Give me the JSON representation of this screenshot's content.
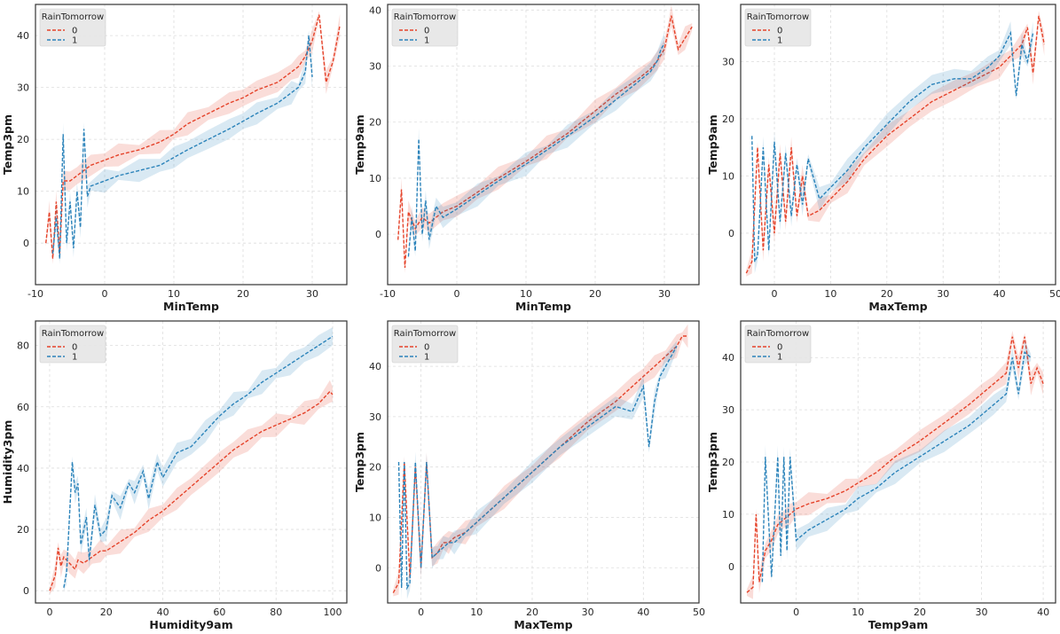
{
  "colors": {
    "series0": "#e5432a",
    "series1": "#2b83ba",
    "grid": "#dddddd",
    "frame": "#333333",
    "legend_bg": "#e6e6e6"
  },
  "chart_data": [
    {
      "type": "line",
      "title": "",
      "xlabel": "MinTemp",
      "ylabel": "Temp3pm",
      "xlim": [
        -10,
        35
      ],
      "ylim": [
        -8,
        46
      ],
      "xticks": [
        -10,
        0,
        10,
        20,
        30
      ],
      "yticks": [
        0,
        10,
        20,
        30,
        40
      ],
      "grid": true,
      "legend": {
        "title": "RainTomorrow",
        "entries": [
          "0",
          "1"
        ],
        "placement": "top-left"
      },
      "series": [
        {
          "name": "0",
          "x": [
            -8.5,
            -8,
            -7.5,
            -7,
            -6.5,
            -6,
            -5,
            -4,
            -2,
            0,
            2,
            5,
            8,
            10,
            12,
            15,
            18,
            20,
            22,
            25,
            27,
            28,
            29,
            30,
            31,
            32,
            33,
            34
          ],
          "y": [
            0,
            6,
            -3,
            8,
            -2,
            12,
            12,
            13,
            15,
            16,
            17,
            18,
            19.5,
            21,
            23,
            25,
            27,
            28,
            29.5,
            31,
            33,
            34,
            36,
            39,
            44,
            31,
            35,
            42
          ]
        },
        {
          "name": "1",
          "x": [
            -7.5,
            -7,
            -6.5,
            -6,
            -5.5,
            -5,
            -4.5,
            -4,
            -3.5,
            -3,
            -2.5,
            -2,
            0,
            2,
            5,
            8,
            10,
            12,
            15,
            18,
            20,
            22,
            25,
            27,
            28,
            29,
            29.5,
            30
          ],
          "y": [
            -2,
            5,
            -3,
            21,
            0,
            8,
            -1,
            10,
            3,
            22,
            9,
            11,
            12,
            13,
            14,
            15,
            16.5,
            18,
            20,
            22,
            23.5,
            25,
            27,
            29,
            30,
            33,
            40,
            32
          ]
        }
      ]
    },
    {
      "type": "line",
      "title": "",
      "xlabel": "MinTemp",
      "ylabel": "Temp9am",
      "xlim": [
        -10,
        35
      ],
      "ylim": [
        -9,
        41
      ],
      "xticks": [
        -10,
        0,
        10,
        20,
        30
      ],
      "yticks": [
        0,
        10,
        20,
        30,
        40
      ],
      "grid": true,
      "legend": {
        "title": "RainTomorrow",
        "entries": [
          "0",
          "1"
        ],
        "placement": "top-left"
      },
      "series": [
        {
          "name": "0",
          "x": [
            -8.5,
            -8,
            -7.5,
            -7,
            -6,
            -5,
            -4,
            -2,
            0,
            3,
            6,
            10,
            13,
            16,
            20,
            23,
            26,
            28,
            29,
            30,
            30.5,
            31,
            32,
            33,
            34
          ],
          "y": [
            -1,
            8,
            -6,
            4,
            1,
            3,
            2,
            4,
            5,
            7.5,
            10,
            13,
            15.5,
            18,
            22,
            25,
            27.5,
            29.5,
            31,
            33,
            36,
            39,
            33,
            35,
            37
          ]
        },
        {
          "name": "1",
          "x": [
            -7,
            -6.5,
            -6,
            -5.5,
            -5,
            -4.5,
            -4,
            -3,
            -2,
            0,
            3,
            6,
            10,
            13,
            16,
            20,
            23,
            26,
            28,
            29,
            29.5,
            30
          ],
          "y": [
            -4,
            3,
            -3,
            17,
            0,
            6,
            -1,
            5,
            3,
            4.5,
            7,
            9.5,
            12.5,
            15,
            17.5,
            21,
            24,
            27,
            29,
            31,
            33,
            34
          ]
        }
      ]
    },
    {
      "type": "line",
      "title": "",
      "xlabel": "MaxTemp",
      "ylabel": "Temp9am",
      "xlim": [
        -6,
        50
      ],
      "ylim": [
        -9,
        40
      ],
      "xticks": [
        0,
        10,
        20,
        30,
        40,
        50
      ],
      "yticks": [
        0,
        10,
        20,
        30
      ],
      "grid": true,
      "legend": {
        "title": "RainTomorrow",
        "entries": [
          "0",
          "1"
        ],
        "placement": "top-left"
      },
      "series": [
        {
          "name": "0",
          "x": [
            -5,
            -4,
            -3,
            -2,
            -1,
            0,
            1,
            2,
            3,
            4,
            5,
            6,
            8,
            10,
            13,
            16,
            20,
            24,
            28,
            32,
            36,
            40,
            42,
            44,
            45,
            46,
            47,
            48
          ],
          "y": [
            -7,
            -5,
            15,
            -3,
            12,
            0,
            14,
            2,
            15,
            3,
            10,
            3,
            4,
            6,
            9,
            13,
            17,
            20,
            23,
            25,
            27,
            29,
            31,
            33,
            36,
            28,
            38,
            33
          ]
        },
        {
          "name": "1",
          "x": [
            -4,
            -3.5,
            -3,
            -2,
            -1,
            0,
            1,
            2,
            3,
            4,
            5,
            6,
            8,
            10,
            13,
            16,
            20,
            24,
            28,
            32,
            35,
            38,
            40,
            42,
            43,
            44,
            45,
            46
          ],
          "y": [
            17,
            -5,
            -4,
            15,
            -3,
            16,
            2,
            14,
            3,
            12,
            5,
            13,
            6,
            8,
            11,
            15,
            19,
            23,
            26,
            27,
            27,
            29,
            31,
            35,
            24,
            33,
            30,
            35
          ]
        }
      ]
    },
    {
      "type": "line",
      "title": "",
      "xlabel": "Humidity9am",
      "ylabel": "Humidity3pm",
      "xlim": [
        -5,
        105
      ],
      "ylim": [
        -4,
        88
      ],
      "xticks": [
        0,
        20,
        40,
        60,
        80,
        100
      ],
      "yticks": [
        0,
        20,
        40,
        60,
        80
      ],
      "grid": true,
      "legend": {
        "title": "RainTomorrow",
        "entries": [
          "0",
          "1"
        ],
        "placement": "top-left"
      },
      "series": [
        {
          "name": "0",
          "x": [
            0,
            2,
            3,
            4,
            5,
            7,
            9,
            10,
            12,
            15,
            18,
            20,
            25,
            30,
            35,
            40,
            45,
            50,
            55,
            60,
            65,
            70,
            75,
            80,
            85,
            90,
            95,
            99,
            100
          ],
          "y": [
            0,
            5,
            14,
            8,
            11,
            9,
            7,
            10,
            9,
            11,
            13,
            13,
            16,
            19,
            23,
            26,
            30,
            34,
            38,
            42,
            46,
            49,
            52,
            54,
            56,
            58,
            61,
            65,
            64
          ]
        },
        {
          "name": "1",
          "x": [
            5,
            6,
            8,
            9,
            10,
            11,
            13,
            14,
            16,
            18,
            20,
            22,
            25,
            28,
            30,
            33,
            35,
            38,
            40,
            45,
            50,
            55,
            60,
            65,
            70,
            75,
            80,
            85,
            90,
            95,
            100
          ],
          "y": [
            1,
            6,
            42,
            32,
            35,
            15,
            24,
            10,
            28,
            18,
            20,
            31,
            27,
            35,
            32,
            39,
            30,
            42,
            37,
            45,
            47,
            52,
            57,
            61,
            64,
            68,
            71,
            74,
            77,
            80,
            83
          ]
        }
      ]
    },
    {
      "type": "line",
      "title": "",
      "xlabel": "MaxTemp",
      "ylabel": "Temp3pm",
      "xlim": [
        -6,
        50
      ],
      "ylim": [
        -7,
        49
      ],
      "xticks": [
        0,
        10,
        20,
        30,
        40,
        50
      ],
      "yticks": [
        0,
        10,
        20,
        30,
        40
      ],
      "grid": true,
      "legend": {
        "title": "RainTomorrow",
        "entries": [
          "0",
          "1"
        ],
        "placement": "top-left"
      },
      "series": [
        {
          "name": "0",
          "x": [
            -5,
            -4,
            -3,
            -2,
            -1,
            0,
            1,
            2,
            3,
            4,
            5,
            6,
            8,
            10,
            15,
            20,
            25,
            30,
            35,
            38,
            40,
            42,
            44,
            46,
            47,
            48
          ],
          "y": [
            -5,
            -3,
            21,
            -2,
            20,
            0,
            21,
            2,
            3,
            5,
            5,
            6,
            7,
            9,
            14,
            19,
            24,
            29,
            33,
            36,
            38,
            40,
            42,
            44,
            46,
            46
          ]
        },
        {
          "name": "1",
          "x": [
            -4,
            -3.5,
            -3,
            -2.5,
            -2,
            -1,
            0,
            1,
            2,
            3,
            4,
            5,
            6,
            8,
            10,
            15,
            20,
            25,
            30,
            35,
            38,
            40,
            41,
            42,
            43,
            44,
            46
          ],
          "y": [
            21,
            -4,
            21,
            -4,
            -3,
            21,
            0,
            21,
            2,
            3,
            4,
            5,
            5,
            7,
            9,
            14,
            19,
            24,
            28,
            32,
            31,
            36,
            24,
            33,
            38,
            40,
            44
          ]
        }
      ]
    },
    {
      "type": "line",
      "title": "",
      "xlabel": "Temp9am",
      "ylabel": "Temp3pm",
      "xlim": [
        -9,
        42
      ],
      "ylim": [
        -7,
        47
      ],
      "xticks": [
        0,
        10,
        20,
        30,
        40
      ],
      "yticks": [
        0,
        10,
        20,
        30,
        40
      ],
      "grid": true,
      "legend": {
        "title": "RainTomorrow",
        "entries": [
          "0",
          "1"
        ],
        "placement": "top-left"
      },
      "series": [
        {
          "name": "0",
          "x": [
            -8,
            -7,
            -6.5,
            -6,
            -5,
            -4,
            -3,
            -2,
            -1,
            0,
            2,
            5,
            8,
            10,
            13,
            16,
            20,
            24,
            28,
            30,
            32,
            34,
            35,
            36,
            37,
            38,
            39,
            40
          ],
          "y": [
            -5,
            -4,
            10,
            -3,
            3,
            5,
            8,
            9,
            10,
            11,
            12,
            13,
            14.5,
            16,
            18,
            21,
            24,
            27.5,
            31,
            33,
            35,
            37,
            44,
            38,
            44,
            35,
            38,
            35
          ]
        },
        {
          "name": "1",
          "x": [
            -5.5,
            -5,
            -4,
            -3,
            -2.5,
            -2,
            -1.5,
            -1,
            0,
            2,
            5,
            8,
            10,
            13,
            16,
            20,
            24,
            28,
            30,
            32,
            34,
            35,
            36,
            37,
            38
          ],
          "y": [
            -3,
            21,
            -2,
            21,
            2,
            21,
            3,
            21,
            5,
            7,
            9,
            11,
            13,
            15,
            18,
            21,
            24,
            27,
            29,
            31,
            33,
            40,
            33,
            41,
            40
          ]
        }
      ]
    }
  ]
}
